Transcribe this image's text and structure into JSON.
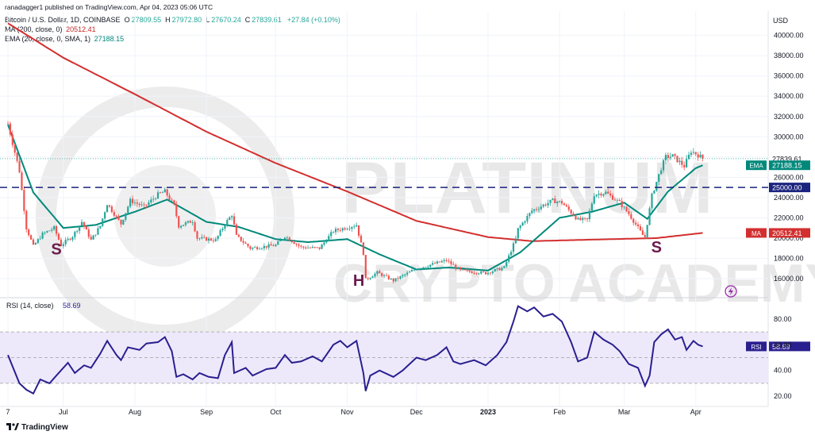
{
  "publisher": "ranadagger1 published on TradingView.com, Apr 04, 2023 05:06 UTC",
  "header": {
    "symbol": "Bitcoin / U.S. Dollar, 1D, COINBASE",
    "o_label": "O",
    "o": "27809.55",
    "h_label": "H",
    "h": "27972.80",
    "l_label": "L",
    "l": "27670.24",
    "c_label": "C",
    "c": "27839.61",
    "change": "+27.84 (+0.10%)",
    "ma_label": "MA (200, close, 0)",
    "ma_value": "20512.41",
    "ema_label": "EMA (20, close, 0, SMA, 1)",
    "ema_value": "27188.15"
  },
  "currency": "USD",
  "footer_brand": "TradingView",
  "colors": {
    "up": "#26a69a",
    "down": "#ef5350",
    "ma": "#d32f2f",
    "ema": "#00897b",
    "rsi": "#2a1f8f",
    "rsi_band": "#ede9fb",
    "grid": "#f0f3fa",
    "text": "#131722",
    "watermark": "#dcdcdc"
  },
  "watermark": {
    "line1": "PLATINUM",
    "line2": "CRYPTO ACADEMY"
  },
  "chart_data": [
    {
      "type": "candlestick",
      "y_ticks": [
        "40000.00",
        "38000.00",
        "36000.00",
        "34000.00",
        "32000.00",
        "30000.00",
        "28000.00",
        "26000.00",
        "24000.00",
        "22000.00",
        "20000.00",
        "18000.00",
        "16000.00"
      ],
      "ylim": [
        14200,
        42400
      ],
      "x_ticks": [
        "7",
        "Jul",
        "Aug",
        "Sep",
        "Oct",
        "Nov",
        "Dec",
        "2023",
        "Feb",
        "Mar",
        "Apr"
      ],
      "support_line": 25000,
      "price_labels": [
        {
          "text": "27839.61",
          "value": 27839.61,
          "tag": ""
        },
        {
          "text": "27188.15",
          "value": 27188.15,
          "tag": "EMA"
        },
        {
          "text": "25000.00",
          "value": 25000,
          "tag": ""
        },
        {
          "text": "20512.41",
          "value": 20512.41,
          "tag": "MA"
        }
      ],
      "annotations": [
        {
          "text": "S",
          "x_date": "Jun 28",
          "value": 18400
        },
        {
          "text": "H",
          "x_date": "Nov 06",
          "value": 15300
        },
        {
          "text": "S",
          "x_date": "Mar 15",
          "value": 18600
        }
      ],
      "close_anchors": [
        {
          "date": "Jun 07",
          "value": 31300
        },
        {
          "date": "Jun 12",
          "value": 26600
        },
        {
          "date": "Jun 15",
          "value": 21000
        },
        {
          "date": "Jun 18",
          "value": 19200
        },
        {
          "date": "Jun 22",
          "value": 20400
        },
        {
          "date": "Jun 27",
          "value": 21000
        },
        {
          "date": "Jun 30",
          "value": 19300
        },
        {
          "date": "Jul 05",
          "value": 20200
        },
        {
          "date": "Jul 09",
          "value": 21600
        },
        {
          "date": "Jul 13",
          "value": 19800
        },
        {
          "date": "Jul 17",
          "value": 21200
        },
        {
          "date": "Jul 20",
          "value": 23400
        },
        {
          "date": "Jul 26",
          "value": 21400
        },
        {
          "date": "Jul 30",
          "value": 23700
        },
        {
          "date": "Aug 05",
          "value": 23100
        },
        {
          "date": "Aug 11",
          "value": 24300
        },
        {
          "date": "Aug 14",
          "value": 24600
        },
        {
          "date": "Aug 18",
          "value": 23200
        },
        {
          "date": "Aug 20",
          "value": 21200
        },
        {
          "date": "Aug 26",
          "value": 21700
        },
        {
          "date": "Aug 28",
          "value": 20000
        },
        {
          "date": "Sep 05",
          "value": 19800
        },
        {
          "date": "Sep 09",
          "value": 21400
        },
        {
          "date": "Sep 12",
          "value": 22300
        },
        {
          "date": "Sep 14",
          "value": 20200
        },
        {
          "date": "Sep 20",
          "value": 19000
        },
        {
          "date": "Oct 01",
          "value": 19300
        },
        {
          "date": "Oct 05",
          "value": 20200
        },
        {
          "date": "Oct 12",
          "value": 19100
        },
        {
          "date": "Oct 20",
          "value": 19000
        },
        {
          "date": "Oct 26",
          "value": 20700
        },
        {
          "date": "Nov 05",
          "value": 21300
        },
        {
          "date": "Nov 08",
          "value": 18500
        },
        {
          "date": "Nov 09",
          "value": 15900
        },
        {
          "date": "Nov 14",
          "value": 16600
        },
        {
          "date": "Nov 21",
          "value": 15800
        },
        {
          "date": "Dec 01",
          "value": 17000
        },
        {
          "date": "Dec 14",
          "value": 17800
        },
        {
          "date": "Dec 20",
          "value": 16800
        },
        {
          "date": "Dec 31",
          "value": 16550
        },
        {
          "date": "Jan 08",
          "value": 17100
        },
        {
          "date": "Jan 13",
          "value": 19900
        },
        {
          "date": "Jan 14",
          "value": 20900
        },
        {
          "date": "Jan 20",
          "value": 22700
        },
        {
          "date": "Jan 29",
          "value": 23700
        },
        {
          "date": "Feb 02",
          "value": 23500
        },
        {
          "date": "Feb 09",
          "value": 21800
        },
        {
          "date": "Feb 13",
          "value": 21800
        },
        {
          "date": "Feb 16",
          "value": 24300
        },
        {
          "date": "Feb 21",
          "value": 24500
        },
        {
          "date": "Feb 27",
          "value": 23500
        },
        {
          "date": "Mar 03",
          "value": 22400
        },
        {
          "date": "Mar 09",
          "value": 20300
        },
        {
          "date": "Mar 10",
          "value": 20100
        },
        {
          "date": "Mar 13",
          "value": 24200
        },
        {
          "date": "Mar 17",
          "value": 26900
        },
        {
          "date": "Mar 19",
          "value": 28000
        },
        {
          "date": "Mar 22",
          "value": 28100
        },
        {
          "date": "Mar 27",
          "value": 27100
        },
        {
          "date": "Mar 30",
          "value": 28600
        },
        {
          "date": "Apr 02",
          "value": 28200
        },
        {
          "date": "Apr 04",
          "value": 27840
        }
      ],
      "ma200": [
        {
          "date": "Jun 07",
          "value": 41200
        },
        {
          "date": "Jul 01",
          "value": 37800
        },
        {
          "date": "Aug 01",
          "value": 34200
        },
        {
          "date": "Sep 01",
          "value": 30500
        },
        {
          "date": "Oct 01",
          "value": 27400
        },
        {
          "date": "Nov 01",
          "value": 24600
        },
        {
          "date": "Dec 01",
          "value": 21700
        },
        {
          "date": "Jan 01",
          "value": 20100
        },
        {
          "date": "Jan 20",
          "value": 19700
        },
        {
          "date": "Feb 15",
          "value": 19850
        },
        {
          "date": "Mar 15",
          "value": 20000
        },
        {
          "date": "Apr 04",
          "value": 20512
        }
      ],
      "ema20": [
        {
          "date": "Jun 07",
          "value": 31200
        },
        {
          "date": "Jun 18",
          "value": 24500
        },
        {
          "date": "Jul 01",
          "value": 21000
        },
        {
          "date": "Jul 15",
          "value": 21300
        },
        {
          "date": "Aug 01",
          "value": 22600
        },
        {
          "date": "Aug 15",
          "value": 23800
        },
        {
          "date": "Sep 01",
          "value": 21600
        },
        {
          "date": "Sep 15",
          "value": 21100
        },
        {
          "date": "Oct 01",
          "value": 19900
        },
        {
          "date": "Oct 15",
          "value": 19600
        },
        {
          "date": "Nov 01",
          "value": 19900
        },
        {
          "date": "Nov 15",
          "value": 18400
        },
        {
          "date": "Dec 01",
          "value": 16900
        },
        {
          "date": "Dec 15",
          "value": 17100
        },
        {
          "date": "Jan 01",
          "value": 16800
        },
        {
          "date": "Jan 15",
          "value": 18600
        },
        {
          "date": "Feb 01",
          "value": 22000
        },
        {
          "date": "Feb 15",
          "value": 22600
        },
        {
          "date": "Mar 01",
          "value": 23500
        },
        {
          "date": "Mar 11",
          "value": 21900
        },
        {
          "date": "Mar 20",
          "value": 24600
        },
        {
          "date": "Apr 01",
          "value": 26900
        },
        {
          "date": "Apr 04",
          "value": 27188
        }
      ]
    },
    {
      "type": "line",
      "label": "RSI (14, close)",
      "value_text": "58.69",
      "tag": "RSI",
      "y_ticks": [
        "80.00",
        "60.00",
        "40.00",
        "20.00"
      ],
      "ylim": [
        12,
        96
      ],
      "band": [
        30,
        70
      ],
      "mid": 50,
      "points": [
        {
          "date": "Jun 07",
          "value": 52
        },
        {
          "date": "Jun 12",
          "value": 30
        },
        {
          "date": "Jun 15",
          "value": 25
        },
        {
          "date": "Jun 18",
          "value": 22
        },
        {
          "date": "Jun 21",
          "value": 33
        },
        {
          "date": "Jun 25",
          "value": 30
        },
        {
          "date": "Jun 28",
          "value": 36
        },
        {
          "date": "Jul 03",
          "value": 46
        },
        {
          "date": "Jul 06",
          "value": 38
        },
        {
          "date": "Jul 10",
          "value": 44
        },
        {
          "date": "Jul 13",
          "value": 42
        },
        {
          "date": "Jul 17",
          "value": 53
        },
        {
          "date": "Jul 20",
          "value": 63
        },
        {
          "date": "Jul 24",
          "value": 52
        },
        {
          "date": "Jul 26",
          "value": 48
        },
        {
          "date": "Jul 29",
          "value": 58
        },
        {
          "date": "Aug 03",
          "value": 56
        },
        {
          "date": "Aug 06",
          "value": 61
        },
        {
          "date": "Aug 11",
          "value": 62
        },
        {
          "date": "Aug 14",
          "value": 66
        },
        {
          "date": "Aug 17",
          "value": 55
        },
        {
          "date": "Aug 19",
          "value": 35
        },
        {
          "date": "Aug 22",
          "value": 37
        },
        {
          "date": "Aug 26",
          "value": 33
        },
        {
          "date": "Aug 29",
          "value": 38
        },
        {
          "date": "Sep 02",
          "value": 35
        },
        {
          "date": "Sep 06",
          "value": 34
        },
        {
          "date": "Sep 09",
          "value": 52
        },
        {
          "date": "Sep 12",
          "value": 62
        },
        {
          "date": "Sep 13",
          "value": 38
        },
        {
          "date": "Sep 18",
          "value": 42
        },
        {
          "date": "Sep 21",
          "value": 36
        },
        {
          "date": "Sep 27",
          "value": 41
        },
        {
          "date": "Oct 01",
          "value": 42
        },
        {
          "date": "Oct 05",
          "value": 52
        },
        {
          "date": "Oct 08",
          "value": 46
        },
        {
          "date": "Oct 12",
          "value": 47
        },
        {
          "date": "Oct 17",
          "value": 51
        },
        {
          "date": "Oct 21",
          "value": 47
        },
        {
          "date": "Oct 26",
          "value": 60
        },
        {
          "date": "Oct 29",
          "value": 63
        },
        {
          "date": "Nov 01",
          "value": 58
        },
        {
          "date": "Nov 05",
          "value": 63
        },
        {
          "date": "Nov 08",
          "value": 38
        },
        {
          "date": "Nov 09",
          "value": 24
        },
        {
          "date": "Nov 11",
          "value": 36
        },
        {
          "date": "Nov 15",
          "value": 40
        },
        {
          "date": "Nov 21",
          "value": 35
        },
        {
          "date": "Nov 25",
          "value": 40
        },
        {
          "date": "Dec 01",
          "value": 50
        },
        {
          "date": "Dec 05",
          "value": 48
        },
        {
          "date": "Dec 10",
          "value": 52
        },
        {
          "date": "Dec 14",
          "value": 58
        },
        {
          "date": "Dec 17",
          "value": 47
        },
        {
          "date": "Dec 20",
          "value": 45
        },
        {
          "date": "Dec 26",
          "value": 48
        },
        {
          "date": "Dec 31",
          "value": 44
        },
        {
          "date": "Jan 05",
          "value": 52
        },
        {
          "date": "Jan 09",
          "value": 62
        },
        {
          "date": "Jan 12",
          "value": 78
        },
        {
          "date": "Jan 14",
          "value": 90
        },
        {
          "date": "Jan 18",
          "value": 86
        },
        {
          "date": "Jan 21",
          "value": 89
        },
        {
          "date": "Jan 25",
          "value": 82
        },
        {
          "date": "Jan 29",
          "value": 84
        },
        {
          "date": "Feb 02",
          "value": 78
        },
        {
          "date": "Feb 06",
          "value": 62
        },
        {
          "date": "Feb 09",
          "value": 47
        },
        {
          "date": "Feb 13",
          "value": 50
        },
        {
          "date": "Feb 16",
          "value": 70
        },
        {
          "date": "Feb 20",
          "value": 64
        },
        {
          "date": "Feb 24",
          "value": 60
        },
        {
          "date": "Feb 27",
          "value": 55
        },
        {
          "date": "Mar 03",
          "value": 45
        },
        {
          "date": "Mar 07",
          "value": 42
        },
        {
          "date": "Mar 10",
          "value": 28
        },
        {
          "date": "Mar 12",
          "value": 36
        },
        {
          "date": "Mar 14",
          "value": 62
        },
        {
          "date": "Mar 17",
          "value": 68
        },
        {
          "date": "Mar 20",
          "value": 72
        },
        {
          "date": "Mar 23",
          "value": 64
        },
        {
          "date": "Mar 26",
          "value": 66
        },
        {
          "date": "Mar 28",
          "value": 56
        },
        {
          "date": "Mar 31",
          "value": 63
        },
        {
          "date": "Apr 02",
          "value": 60
        },
        {
          "date": "Apr 04",
          "value": 58.69
        }
      ]
    }
  ]
}
